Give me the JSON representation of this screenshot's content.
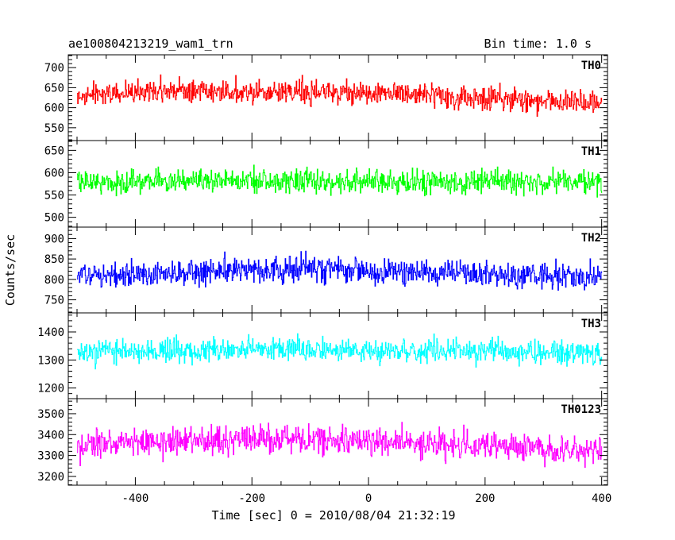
{
  "chart_data": {
    "type": "line",
    "title_left": "ae100804213219_wam1_trn",
    "title_right": "Bin time: 1.0 s",
    "xlabel": "Time [sec] 0 = 2010/08/04 21:32:19",
    "ylabel": "Counts/sec",
    "xlim": [
      -515,
      410
    ],
    "xticks": [
      -400,
      -200,
      0,
      200,
      400
    ],
    "x_range": [
      -500,
      400
    ],
    "x_step": 1,
    "grid": false,
    "panels": [
      {
        "name": "TH0",
        "color": "#ff0000",
        "ylim": [
          518,
          732
        ],
        "yticks": [
          550,
          600,
          650,
          700
        ],
        "mean": 635,
        "noise_amplitude": 30,
        "series_points": [
          [
            -500,
            630
          ],
          [
            -400,
            640
          ],
          [
            -300,
            642
          ],
          [
            -200,
            640
          ],
          [
            -100,
            638
          ],
          [
            0,
            636
          ],
          [
            100,
            632
          ],
          [
            200,
            622
          ],
          [
            300,
            618
          ],
          [
            400,
            615
          ]
        ]
      },
      {
        "name": "TH1",
        "color": "#00ff00",
        "ylim": [
          478,
          672
        ],
        "yticks": [
          500,
          550,
          600,
          650
        ],
        "mean": 580,
        "noise_amplitude": 27,
        "series_points": [
          [
            -500,
            578
          ],
          [
            -400,
            580
          ],
          [
            -300,
            582
          ],
          [
            -200,
            584
          ],
          [
            -100,
            582
          ],
          [
            0,
            580
          ],
          [
            100,
            582
          ],
          [
            200,
            580
          ],
          [
            300,
            578
          ],
          [
            400,
            578
          ]
        ]
      },
      {
        "name": "TH2",
        "color": "#0000ff",
        "ylim": [
          718,
          928
        ],
        "yticks": [
          750,
          800,
          850,
          900
        ],
        "mean": 810,
        "noise_amplitude": 33,
        "series_points": [
          [
            -500,
            808
          ],
          [
            -400,
            812
          ],
          [
            -300,
            818
          ],
          [
            -200,
            822
          ],
          [
            -100,
            826
          ],
          [
            0,
            818
          ],
          [
            100,
            818
          ],
          [
            200,
            812
          ],
          [
            300,
            810
          ],
          [
            400,
            808
          ]
        ]
      },
      {
        "name": "TH3",
        "color": "#00ffff",
        "ylim": [
          1162,
          1468
        ],
        "yticks": [
          1200,
          1300,
          1400
        ],
        "mean": 1330,
        "noise_amplitude": 42,
        "series_points": [
          [
            -500,
            1330
          ],
          [
            -400,
            1332
          ],
          [
            -300,
            1336
          ],
          [
            -200,
            1338
          ],
          [
            -100,
            1336
          ],
          [
            0,
            1332
          ],
          [
            100,
            1330
          ],
          [
            200,
            1328
          ],
          [
            300,
            1326
          ],
          [
            400,
            1322
          ]
        ]
      },
      {
        "name": "TH0123",
        "color": "#ff00ff",
        "ylim": [
          3158,
          3572
        ],
        "yticks": [
          3200,
          3300,
          3400,
          3500
        ],
        "mean": 3360,
        "noise_amplitude": 68,
        "series_points": [
          [
            -500,
            3350
          ],
          [
            -400,
            3360
          ],
          [
            -300,
            3372
          ],
          [
            -200,
            3380
          ],
          [
            -100,
            3382
          ],
          [
            0,
            3372
          ],
          [
            100,
            3356
          ],
          [
            200,
            3342
          ],
          [
            300,
            3330
          ],
          [
            400,
            3322
          ]
        ]
      }
    ]
  }
}
